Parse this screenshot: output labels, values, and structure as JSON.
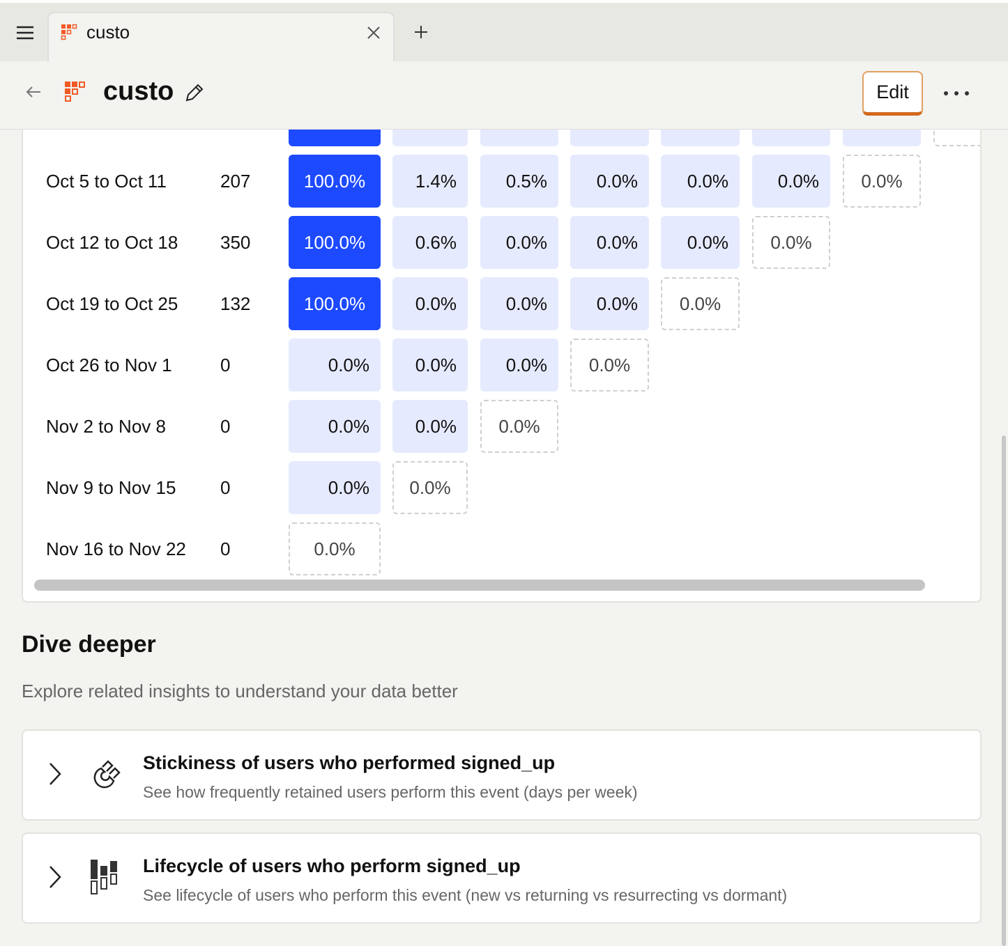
{
  "tab": {
    "title": "custo"
  },
  "header": {
    "title": "custo",
    "edit_button": "Edit"
  },
  "table": {
    "rows": [
      {
        "label": "Oct 5 to Oct 11",
        "count": "207",
        "cells": [
          "100.0%",
          "1.4%",
          "0.5%",
          "0.0%",
          "0.0%",
          "0.0%",
          "0.0%"
        ]
      },
      {
        "label": "Oct 12 to Oct 18",
        "count": "350",
        "cells": [
          "100.0%",
          "0.6%",
          "0.0%",
          "0.0%",
          "0.0%",
          "0.0%"
        ]
      },
      {
        "label": "Oct 19 to Oct 25",
        "count": "132",
        "cells": [
          "100.0%",
          "0.0%",
          "0.0%",
          "0.0%",
          "0.0%"
        ]
      },
      {
        "label": "Oct 26 to Nov 1",
        "count": "0",
        "cells": [
          "0.0%",
          "0.0%",
          "0.0%",
          "0.0%"
        ]
      },
      {
        "label": "Nov 2 to Nov 8",
        "count": "0",
        "cells": [
          "0.0%",
          "0.0%",
          "0.0%"
        ]
      },
      {
        "label": "Nov 9 to Nov 15",
        "count": "0",
        "cells": [
          "0.0%",
          "0.0%"
        ]
      },
      {
        "label": "Nov 16 to Nov 22",
        "count": "0",
        "cells": [
          "0.0%"
        ]
      }
    ]
  },
  "section": {
    "title": "Dive deeper",
    "subtitle": "Explore related insights to understand your data better",
    "cards": [
      {
        "title": "Stickiness of users who performed signed_up",
        "description": "See how frequently retained users perform this event (days per week)"
      },
      {
        "title": "Lifecycle of users who perform signed_up",
        "description": "See lifecycle of users who perform this event (new vs returning vs resurrecting vs dormant)"
      }
    ]
  }
}
